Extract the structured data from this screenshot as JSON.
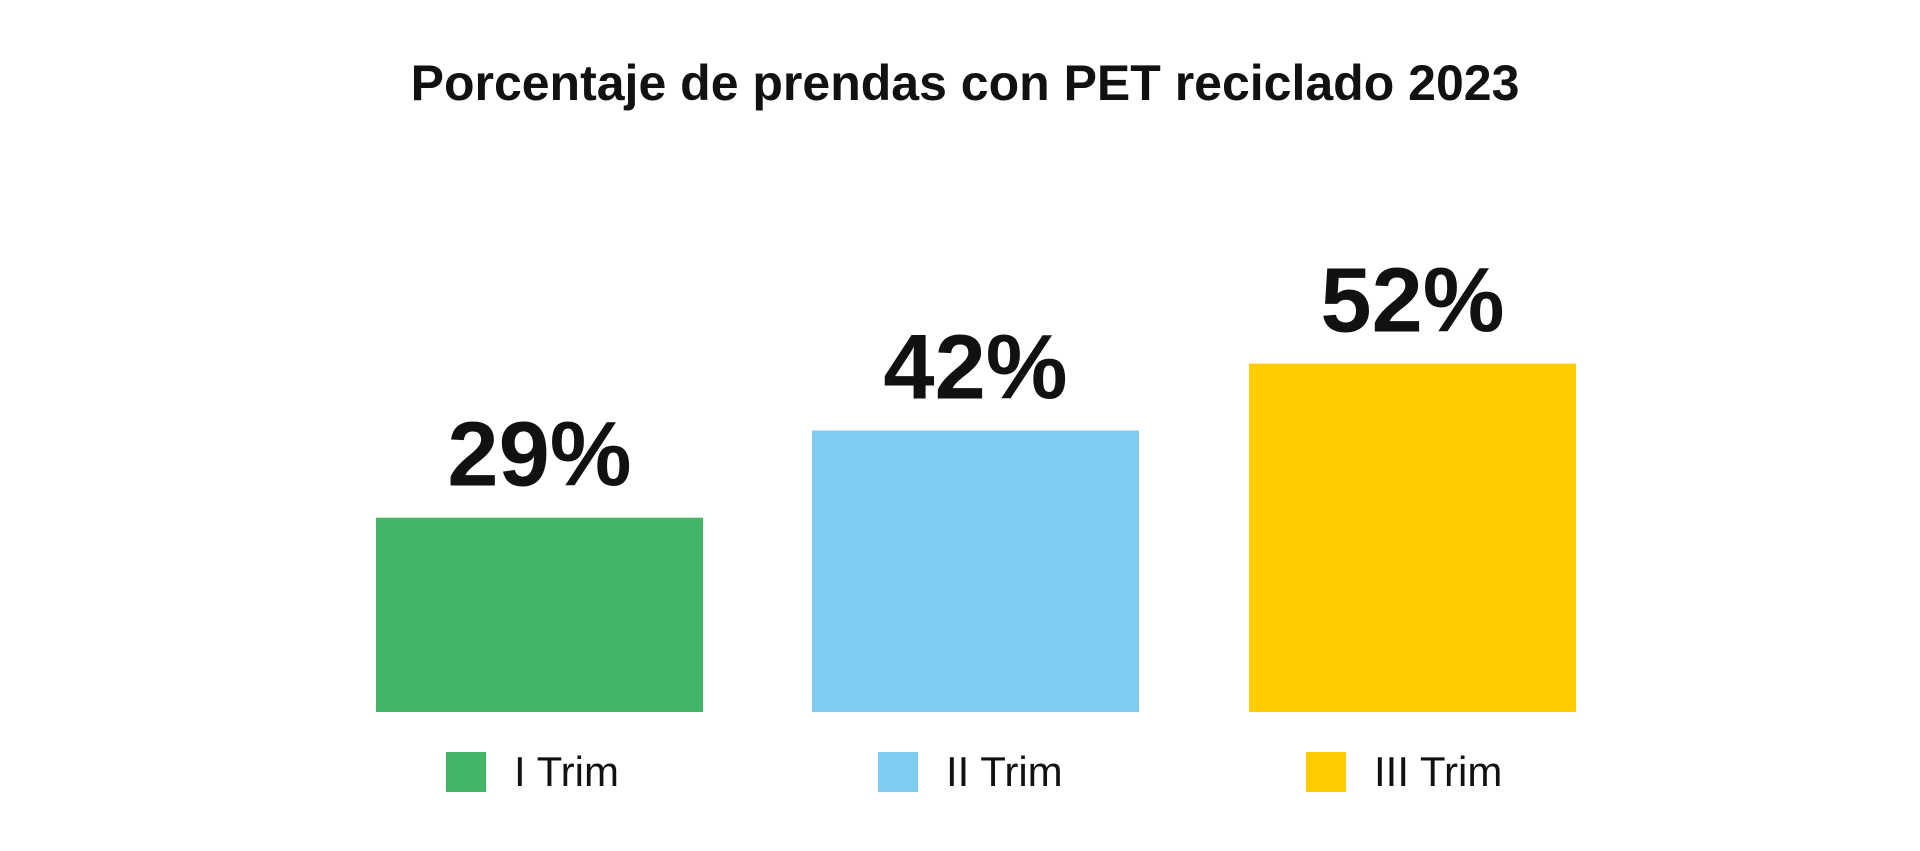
{
  "chart_data": {
    "type": "bar",
    "title": "Porcentaje de prendas con PET reciclado 2023",
    "categories": [
      "I Trim",
      "II Trim",
      "III Trim"
    ],
    "values": [
      29,
      42,
      52
    ],
    "value_labels": [
      "29%",
      "42%",
      "52%"
    ],
    "colors": [
      "#42B566",
      "#7ECCF0",
      "#FFCC00"
    ],
    "value_suffix": "%",
    "xlabel": "",
    "ylabel": "",
    "grid": false,
    "legend_position": "bottom"
  }
}
